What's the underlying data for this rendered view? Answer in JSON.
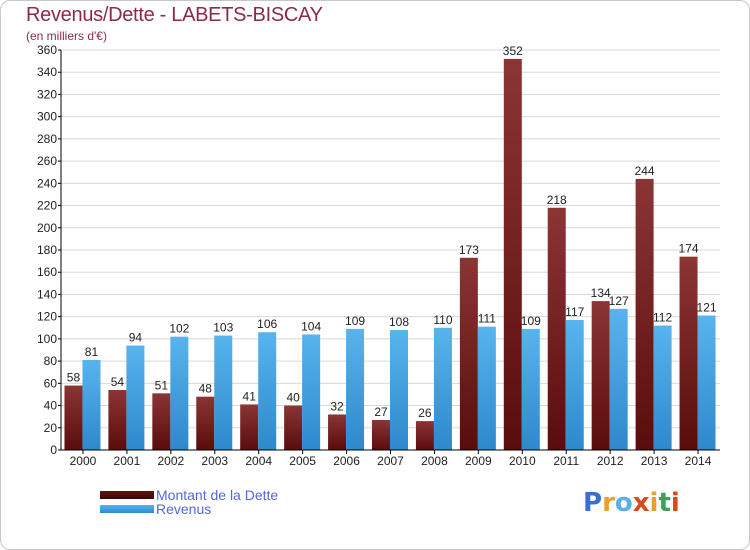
{
  "header": {
    "title": "Revenus/Dette - LABETS-BISCAY",
    "subtitle": "(en milliers d'€)"
  },
  "legend": {
    "items": [
      {
        "label": "Montant de la Dette",
        "color": "#6b1010"
      },
      {
        "label": "Revenus",
        "color": "#3f9fe0"
      }
    ]
  },
  "logo": {
    "text": "Proxiti",
    "letter_colors": [
      "#3a6fcf",
      "#e6a12a",
      "#5ab0e6",
      "#d84a1a",
      "#e6a12a",
      "#3aa35a",
      "#d84a1a"
    ]
  },
  "colors": {
    "dette_top": "#8b3535",
    "dette_bottom": "#5a0c0c",
    "revenus_top": "#58b4ee",
    "revenus_bottom": "#2e88cc",
    "grid": "#d8d8d8",
    "axis": "#000000"
  },
  "chart_data": {
    "type": "bar",
    "title": "Revenus/Dette - LABETS-BISCAY",
    "subtitle": "(en milliers d'€)",
    "categories": [
      "2000",
      "2001",
      "2002",
      "2003",
      "2004",
      "2005",
      "2006",
      "2007",
      "2008",
      "2009",
      "2010",
      "2011",
      "2012",
      "2013",
      "2014"
    ],
    "series": [
      {
        "name": "Montant de la Dette",
        "values": [
          58,
          54,
          51,
          48,
          41,
          40,
          32,
          27,
          26,
          173,
          352,
          218,
          134,
          244,
          174
        ]
      },
      {
        "name": "Revenus",
        "values": [
          81,
          94,
          102,
          103,
          106,
          104,
          109,
          108,
          110,
          111,
          109,
          117,
          127,
          112,
          121
        ]
      }
    ],
    "ylim": [
      0,
      360
    ],
    "ytick_step": 20,
    "grid": true,
    "legend_position": "bottom-left"
  }
}
